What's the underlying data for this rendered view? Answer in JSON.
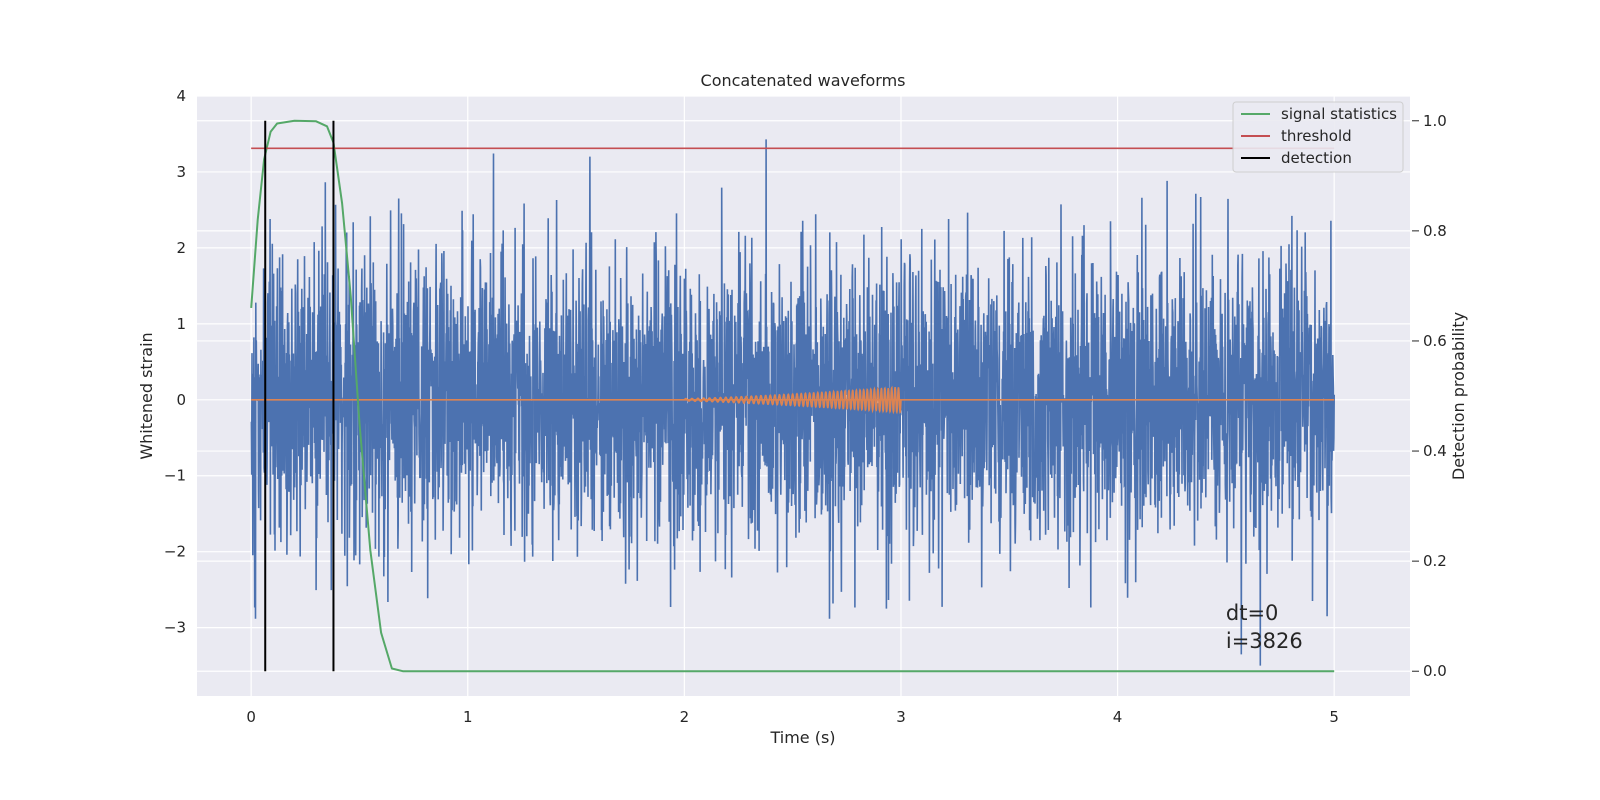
{
  "chart_data": {
    "type": "line",
    "title": "Concatenated waveforms",
    "xlabel": "Time (s)",
    "ylabel": "Whitened strain",
    "y2label": "Detection probability",
    "xlim": [
      -0.25,
      5.35
    ],
    "ylim": [
      -3.9,
      4.0
    ],
    "y2lim": [
      -0.045,
      1.045
    ],
    "x_ticks": [
      0,
      1,
      2,
      3,
      4,
      5
    ],
    "y_ticks": [
      -3,
      -2,
      -1,
      0,
      1,
      2,
      3,
      4
    ],
    "y2_ticks": [
      0.0,
      0.2,
      0.4,
      0.6,
      0.8,
      1.0
    ],
    "x_tick_labels": [
      "0",
      "1",
      "2",
      "3",
      "4",
      "5"
    ],
    "y_tick_labels": [
      "−3",
      "−2",
      "−1",
      "0",
      "1",
      "2",
      "3",
      "4"
    ],
    "y2_tick_labels": [
      "0.0",
      "0.2",
      "0.4",
      "0.6",
      "0.8",
      "1.0"
    ],
    "grid": true,
    "legend_position": "top-right",
    "series": [
      {
        "key": "strain",
        "color": "#4c72b0",
        "x_range": [
          0,
          5
        ],
        "amplitude_range": [
          -3.5,
          3.6
        ],
        "axis": "left"
      },
      {
        "key": "injected",
        "color": "#dd8452",
        "x_range": [
          0,
          5
        ],
        "chirp_range": [
          2,
          3
        ],
        "chirp_amplitude_end": 0.15,
        "axis": "left"
      },
      {
        "name": "signal statistics",
        "color": "#55a868",
        "axis": "right",
        "x": [
          0.0,
          0.03,
          0.06,
          0.09,
          0.12,
          0.2,
          0.3,
          0.35,
          0.38,
          0.42,
          0.46,
          0.5,
          0.55,
          0.6,
          0.65,
          0.7,
          1.0,
          2.0,
          3.0,
          4.0,
          5.0
        ],
        "y": [
          0.66,
          0.82,
          0.93,
          0.98,
          0.995,
          1.0,
          0.999,
          0.99,
          0.96,
          0.85,
          0.68,
          0.45,
          0.22,
          0.07,
          0.005,
          0.0,
          0.0,
          0.0,
          0.0,
          0.0,
          0.0
        ]
      },
      {
        "name": "threshold",
        "color": "#c44e52",
        "axis": "right",
        "x": [
          0,
          5
        ],
        "y": [
          0.95,
          0.95
        ]
      },
      {
        "name": "detection",
        "color": "#000000",
        "axis": "right",
        "type": "vlines",
        "x": [
          0.065,
          0.38
        ],
        "y_range": [
          0.0,
          1.0
        ]
      }
    ],
    "annotations": [
      "dt=0",
      "i=3826"
    ],
    "annotation_position": {
      "x": 4.5,
      "y": -2.9
    }
  }
}
